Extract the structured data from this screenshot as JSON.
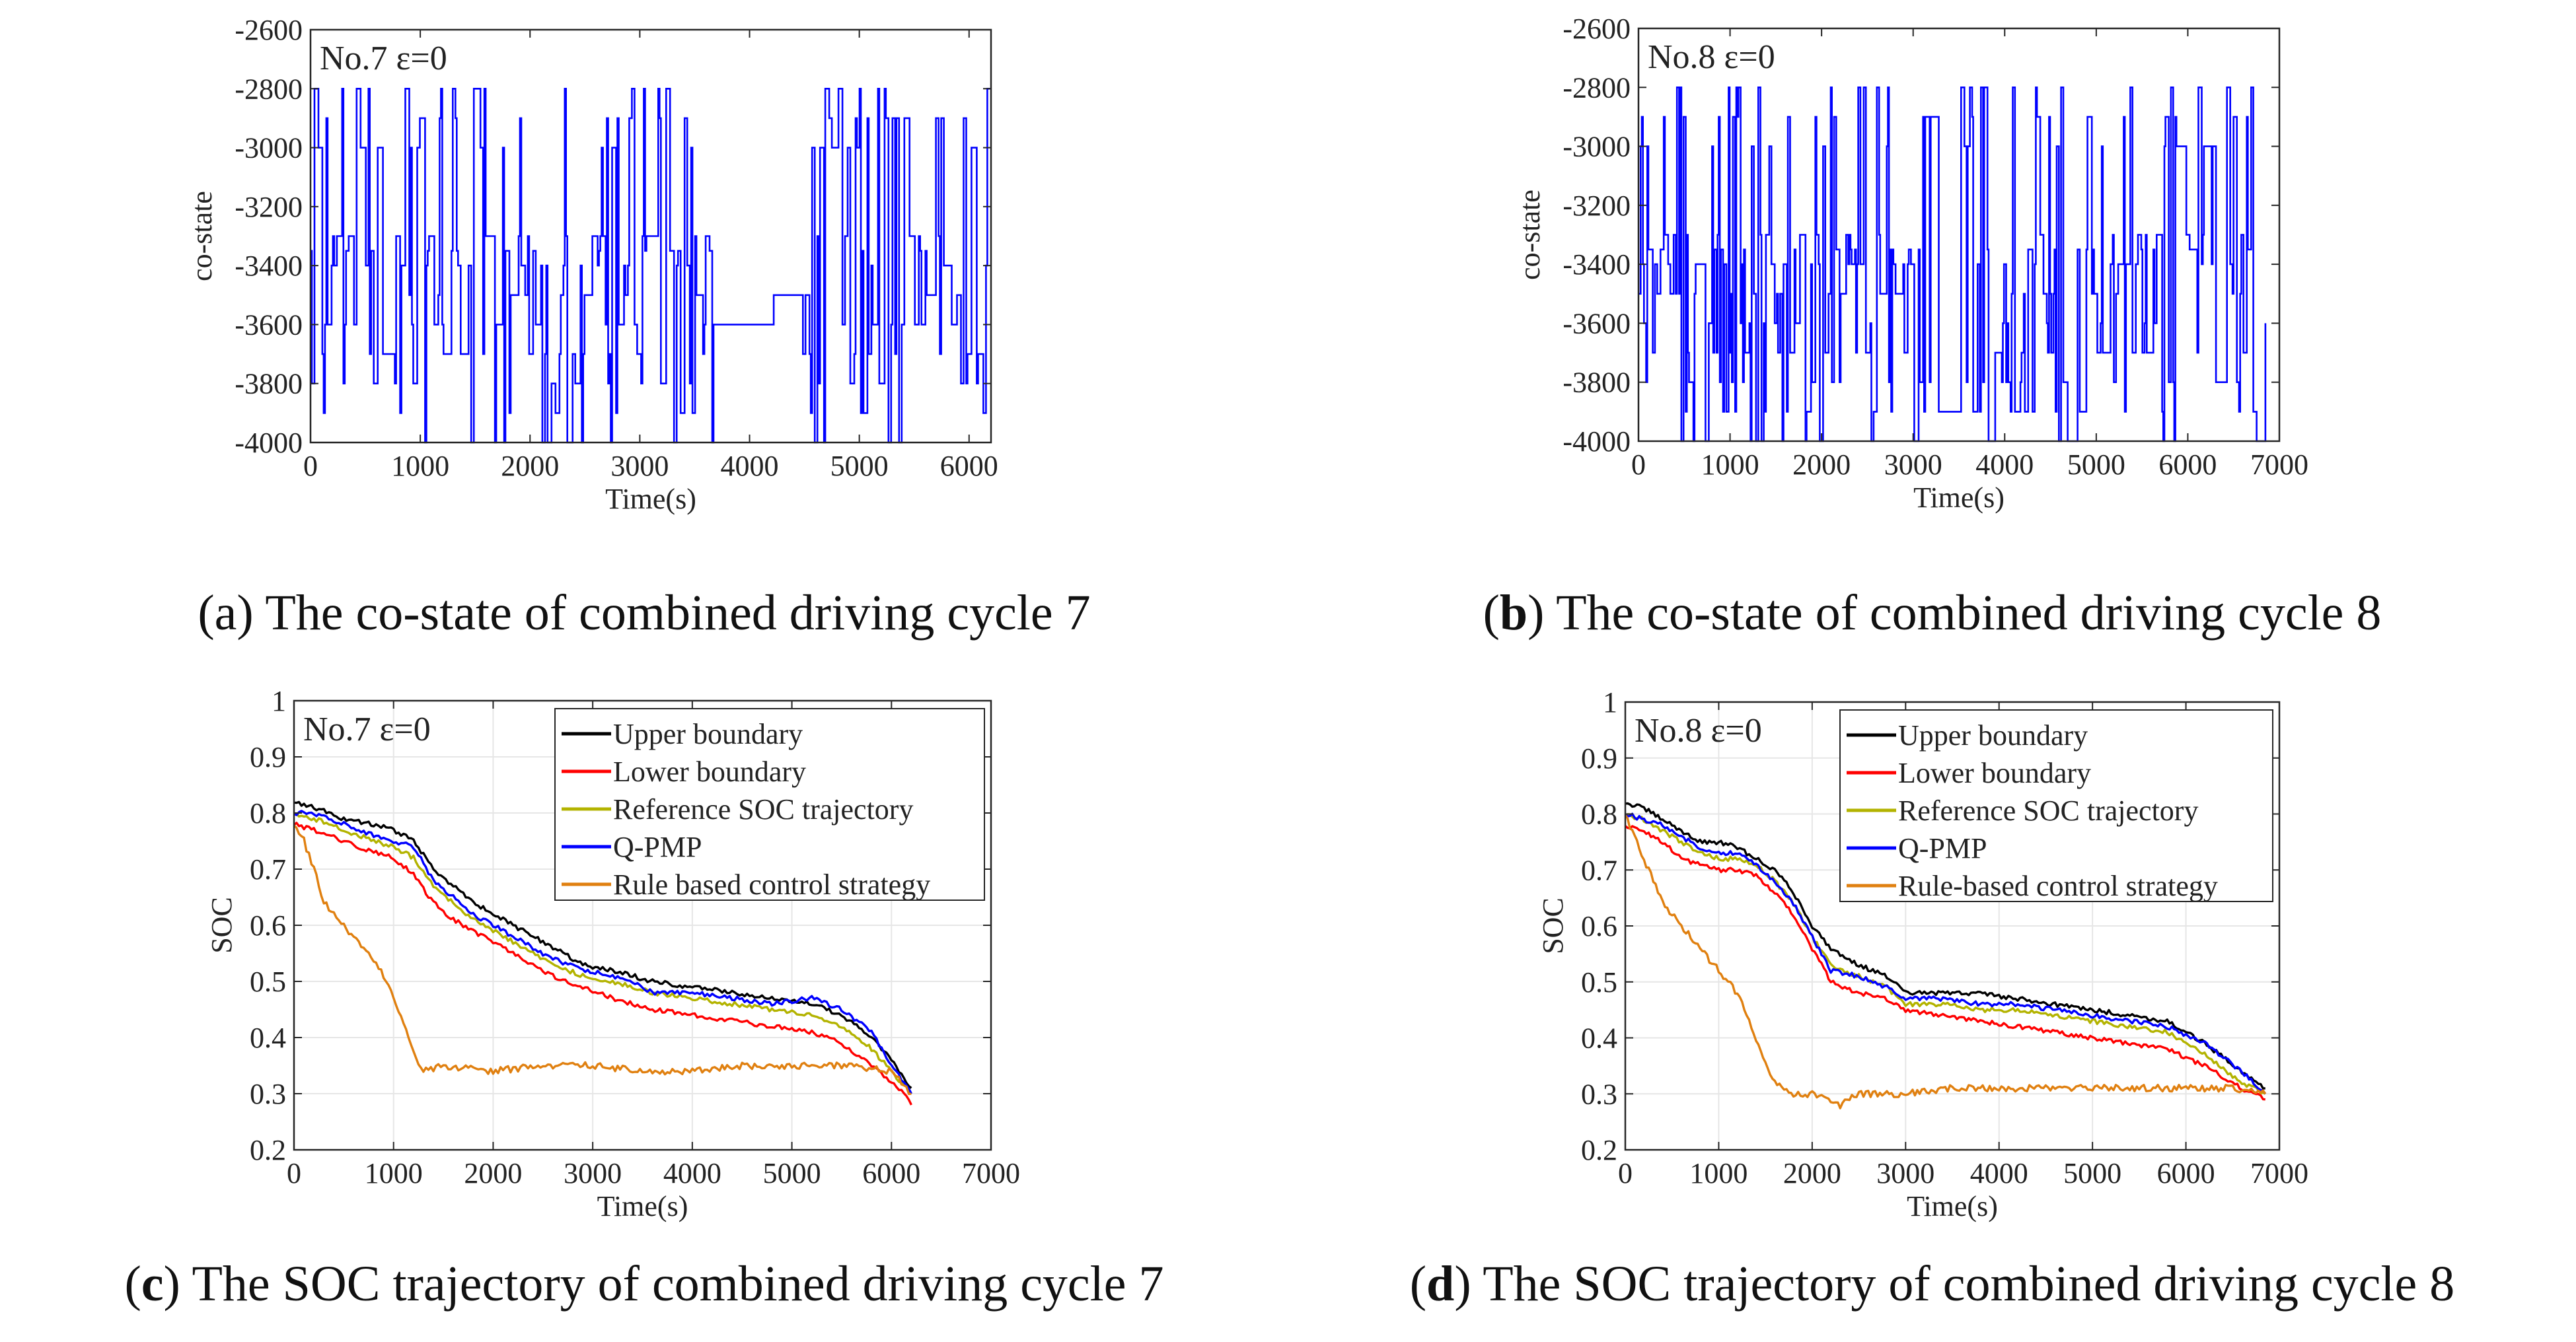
{
  "captions": [
    {
      "letter": "a",
      "text": "The co-state of combined driving cycle 7",
      "bold": false
    },
    {
      "letter": "b",
      "text": "The co-state of combined driving cycle 8",
      "bold": true
    },
    {
      "letter": "c",
      "text": "The SOC trajectory of combined driving cycle 7",
      "bold": true
    },
    {
      "letter": "d",
      "text": "The SOC trajectory of combined driving cycle 8",
      "bold": true
    }
  ],
  "colors": {
    "costate": "#0000ff",
    "upper": "#000000",
    "lower": "#ff0000",
    "reference": "#b3b300",
    "qpmp": "#0000ff",
    "rule": "#e08010",
    "grid": "#e6e6e6",
    "axis": "#262626"
  },
  "chart_data": [
    {
      "id": "a",
      "type": "line",
      "title": "",
      "annotation": "No.7 ε=0",
      "xlabel": "Time(s)",
      "ylabel": "co-state",
      "xlim": [
        0,
        6200
      ],
      "ylim": [
        -4000,
        -2600
      ],
      "xticks": [
        0,
        1000,
        2000,
        3000,
        4000,
        5000,
        6000
      ],
      "yticks": [
        -2600,
        -2800,
        -3000,
        -3200,
        -3400,
        -3600,
        -3800,
        -4000
      ],
      "grid": false,
      "legend": "none",
      "series": [
        {
          "color": "costate",
          "description": "rapidly switching co-state, values in {-4000,-3900,-3800,-3700,-3600,-3500,-3400,-3350,-3000,-2900,-2800}",
          "approx_segments": [
            {
              "x": [
                0,
                3700
              ],
              "min": -4000,
              "max": -2800
            },
            {
              "x": [
                3700,
                4450
              ],
              "min": -3600,
              "max": -3350
            },
            {
              "x": [
                4450,
                6200
              ],
              "min": -4000,
              "max": -2800
            }
          ]
        }
      ]
    },
    {
      "id": "b",
      "type": "line",
      "title": "",
      "annotation": "No.8 ε=0",
      "xlabel": "Time(s)",
      "ylabel": "co-state",
      "xlim": [
        0,
        7000
      ],
      "ylim": [
        -4000,
        -2600
      ],
      "xticks": [
        0,
        1000,
        2000,
        3000,
        4000,
        5000,
        6000,
        7000
      ],
      "yticks": [
        -2600,
        -2800,
        -3000,
        -3200,
        -3400,
        -3600,
        -3800,
        -4000
      ],
      "grid": false,
      "legend": "none",
      "series": [
        {
          "color": "costate",
          "description": "rapidly switching co-state",
          "approx_segments": [
            {
              "x": [
                0,
                3200
              ],
              "min": -4000,
              "max": -2800
            },
            {
              "x": [
                3200,
                3500
              ],
              "min": -3900,
              "max": -3400
            },
            {
              "x": [
                3500,
                6850
              ],
              "min": -4000,
              "max": -2800
            }
          ]
        }
      ]
    },
    {
      "id": "c",
      "type": "line",
      "title": "",
      "annotation": "No.7 ε=0",
      "xlabel": "Time(s)",
      "ylabel": "SOC",
      "xlim": [
        0,
        7000
      ],
      "ylim": [
        0.2,
        1
      ],
      "xticks": [
        0,
        1000,
        2000,
        3000,
        4000,
        5000,
        6000,
        7000
      ],
      "yticks": [
        "1",
        "0.9",
        "0.8",
        "0.7",
        "0.6",
        "0.5",
        "0.4",
        "0.3",
        "0.2"
      ],
      "grid": true,
      "legend": "top-right",
      "series": [
        {
          "name": "Upper boundary",
          "color": "upper",
          "x": [
            0,
            200,
            500,
            800,
            1000,
            1200,
            1400,
            1600,
            1800,
            2000,
            2300,
            2600,
            2900,
            3200,
            3400,
            3600,
            4000,
            4400,
            4800,
            5200,
            5500,
            5800,
            6000,
            6200
          ],
          "y": [
            0.82,
            0.81,
            0.79,
            0.78,
            0.77,
            0.75,
            0.7,
            0.67,
            0.64,
            0.62,
            0.59,
            0.56,
            0.53,
            0.52,
            0.51,
            0.5,
            0.49,
            0.48,
            0.47,
            0.46,
            0.44,
            0.4,
            0.36,
            0.31
          ]
        },
        {
          "name": "Lower boundary",
          "color": "lower",
          "x": [
            0,
            200,
            500,
            800,
            1000,
            1200,
            1400,
            1600,
            1800,
            2000,
            2300,
            2600,
            2900,
            3200,
            3400,
            3600,
            4000,
            4400,
            4800,
            5200,
            5500,
            5800,
            6000,
            6150,
            6200
          ],
          "y": [
            0.78,
            0.77,
            0.75,
            0.73,
            0.72,
            0.69,
            0.64,
            0.61,
            0.59,
            0.57,
            0.54,
            0.51,
            0.49,
            0.47,
            0.46,
            0.45,
            0.44,
            0.43,
            0.42,
            0.41,
            0.39,
            0.35,
            0.32,
            0.3,
            0.28
          ]
        },
        {
          "name": "Reference SOC trajectory",
          "color": "reference",
          "x": [
            0,
            200,
            500,
            800,
            1000,
            1200,
            1400,
            1600,
            1800,
            2000,
            2300,
            2600,
            2900,
            3200,
            3400,
            3600,
            4000,
            4400,
            4800,
            5200,
            5500,
            5800,
            6000,
            6200
          ],
          "y": [
            0.8,
            0.79,
            0.77,
            0.75,
            0.74,
            0.72,
            0.67,
            0.64,
            0.61,
            0.59,
            0.56,
            0.53,
            0.51,
            0.5,
            0.49,
            0.48,
            0.47,
            0.46,
            0.45,
            0.44,
            0.42,
            0.38,
            0.34,
            0.3
          ]
        },
        {
          "name": "Q-PMP",
          "color": "qpmp",
          "x": [
            0,
            200,
            500,
            800,
            1000,
            1200,
            1400,
            1600,
            1800,
            2000,
            2300,
            2600,
            2900,
            3200,
            3400,
            3600,
            4000,
            4400,
            4800,
            5200,
            5500,
            5800,
            6000,
            6200
          ],
          "y": [
            0.8,
            0.8,
            0.78,
            0.76,
            0.75,
            0.74,
            0.68,
            0.65,
            0.62,
            0.6,
            0.57,
            0.54,
            0.52,
            0.51,
            0.5,
            0.48,
            0.48,
            0.47,
            0.46,
            0.47,
            0.45,
            0.41,
            0.35,
            0.3
          ]
        },
        {
          "name": "Rule based control strategy",
          "color": "rule",
          "x": [
            0,
            100,
            200,
            300,
            500,
            700,
            900,
            1000,
            1100,
            1200,
            1250,
            1300,
            1500,
            2000,
            2500,
            3000,
            3500,
            4000,
            4500,
            5000,
            5500,
            6000,
            6200
          ],
          "y": [
            0.78,
            0.75,
            0.7,
            0.64,
            0.6,
            0.56,
            0.51,
            0.47,
            0.42,
            0.38,
            0.35,
            0.34,
            0.35,
            0.34,
            0.35,
            0.35,
            0.34,
            0.34,
            0.35,
            0.35,
            0.35,
            0.34,
            0.3
          ]
        }
      ]
    },
    {
      "id": "d",
      "type": "line",
      "title": "",
      "annotation": "No.8 ε=0",
      "xlabel": "Time(s)",
      "ylabel": "SOC",
      "xlim": [
        0,
        7000
      ],
      "ylim": [
        0.2,
        1
      ],
      "xticks": [
        0,
        1000,
        2000,
        3000,
        4000,
        5000,
        6000,
        7000
      ],
      "yticks": [
        "1",
        "0.9",
        "0.8",
        "0.7",
        "0.6",
        "0.5",
        "0.4",
        "0.3",
        "0.2"
      ],
      "grid": true,
      "legend": "top-right",
      "series": [
        {
          "name": "Upper boundary",
          "color": "upper",
          "x": [
            0,
            200,
            400,
            600,
            800,
            1000,
            1200,
            1400,
            1600,
            1800,
            2000,
            2200,
            2500,
            2800,
            3000,
            3400,
            3800,
            4200,
            4600,
            5000,
            5400,
            5800,
            6200,
            6600,
            6850
          ],
          "y": [
            0.82,
            0.81,
            0.79,
            0.77,
            0.75,
            0.75,
            0.74,
            0.72,
            0.7,
            0.66,
            0.6,
            0.56,
            0.53,
            0.51,
            0.48,
            0.48,
            0.48,
            0.47,
            0.46,
            0.45,
            0.44,
            0.43,
            0.39,
            0.34,
            0.31
          ]
        },
        {
          "name": "Lower boundary",
          "color": "lower",
          "x": [
            0,
            200,
            400,
            600,
            800,
            1000,
            1200,
            1400,
            1600,
            1800,
            2000,
            2200,
            2500,
            2800,
            3000,
            3400,
            3800,
            4200,
            4600,
            5000,
            5400,
            5800,
            6200,
            6600,
            6850
          ],
          "y": [
            0.78,
            0.77,
            0.75,
            0.72,
            0.71,
            0.7,
            0.7,
            0.69,
            0.66,
            0.62,
            0.56,
            0.5,
            0.48,
            0.47,
            0.45,
            0.44,
            0.43,
            0.42,
            0.41,
            0.4,
            0.39,
            0.38,
            0.35,
            0.31,
            0.29
          ]
        },
        {
          "name": "Reference SOC trajectory",
          "color": "reference",
          "x": [
            0,
            200,
            400,
            600,
            800,
            1000,
            1200,
            1400,
            1600,
            1800,
            2000,
            2200,
            2500,
            2800,
            3000,
            3400,
            3800,
            4200,
            4600,
            5000,
            5400,
            5800,
            6200,
            6600,
            6850
          ],
          "y": [
            0.8,
            0.79,
            0.77,
            0.75,
            0.73,
            0.72,
            0.72,
            0.71,
            0.68,
            0.64,
            0.58,
            0.53,
            0.51,
            0.49,
            0.46,
            0.46,
            0.45,
            0.45,
            0.44,
            0.43,
            0.42,
            0.41,
            0.37,
            0.32,
            0.3
          ]
        },
        {
          "name": "Q-PMP",
          "color": "qpmp",
          "x": [
            0,
            200,
            400,
            600,
            800,
            1000,
            1200,
            1400,
            1600,
            1800,
            2000,
            2200,
            2500,
            2800,
            3000,
            3400,
            3800,
            4200,
            4600,
            5000,
            5400,
            5800,
            6200,
            6600,
            6850
          ],
          "y": [
            0.8,
            0.79,
            0.78,
            0.76,
            0.74,
            0.73,
            0.73,
            0.71,
            0.68,
            0.64,
            0.58,
            0.52,
            0.51,
            0.49,
            0.47,
            0.47,
            0.46,
            0.46,
            0.45,
            0.44,
            0.43,
            0.42,
            0.39,
            0.34,
            0.3
          ]
        },
        {
          "name": "Rule-based control strategy",
          "color": "rule",
          "x": [
            0,
            100,
            200,
            300,
            400,
            600,
            800,
            1000,
            1200,
            1300,
            1400,
            1500,
            1600,
            1700,
            1800,
            2000,
            2300,
            2500,
            3000,
            3500,
            4000,
            4500,
            5000,
            5500,
            6000,
            6500,
            6850
          ],
          "y": [
            0.8,
            0.76,
            0.72,
            0.68,
            0.64,
            0.6,
            0.56,
            0.52,
            0.48,
            0.44,
            0.4,
            0.36,
            0.32,
            0.31,
            0.3,
            0.3,
            0.28,
            0.3,
            0.3,
            0.31,
            0.31,
            0.31,
            0.31,
            0.31,
            0.31,
            0.31,
            0.3
          ]
        }
      ]
    }
  ]
}
